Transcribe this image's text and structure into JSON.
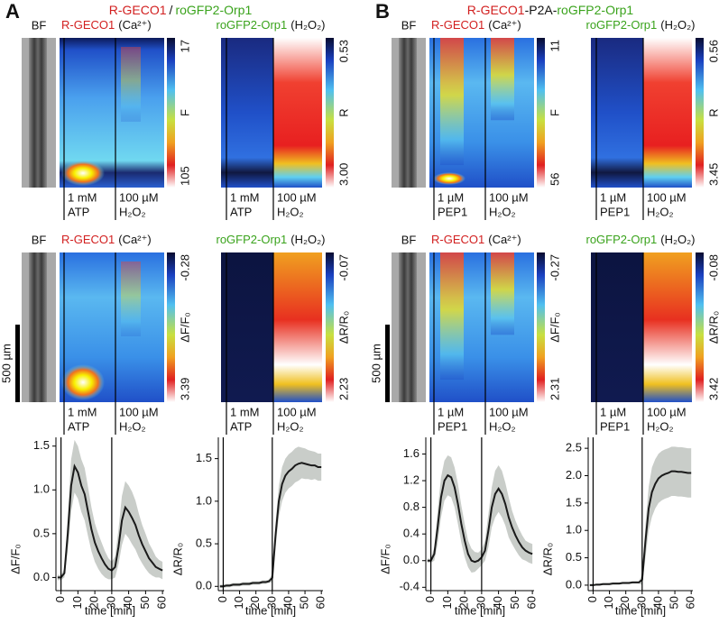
{
  "panels": [
    {
      "letter": "A",
      "title": [
        "R-GECO1",
        "/",
        "roGFP2-Orp1"
      ],
      "rows": [
        {
          "bf": "BF",
          "ca_sensor": "R-GECO1",
          "ca_label": "(Ca²⁺)",
          "ca_scale": [
            "17",
            "F",
            "105"
          ],
          "h2o2_sensor": "roGFP2-Orp1",
          "h2o2_label": "(H₂O₂)",
          "h2o2_scale": [
            "0.53",
            "R",
            "3.00"
          ]
        },
        {
          "bf": "BF",
          "ca_sensor": "R-GECO1",
          "ca_label": "(Ca²⁺)",
          "ca_scale": [
            "-0.28",
            "ΔF/F₀",
            "3.39"
          ],
          "h2o2_sensor": "roGFP2-Orp1",
          "h2o2_label": "(H₂O₂)",
          "h2o2_scale": [
            "-0.07",
            "ΔR/R₀",
            "2.23"
          ]
        }
      ],
      "treatments": [
        "1 mM",
        "ATP",
        "100 µM",
        "H₂O₂"
      ],
      "scale_bar": "500 µm"
    },
    {
      "letter": "B",
      "title": [
        "R-GECO1",
        "-P2A-",
        "roGFP2-Orp1"
      ],
      "rows": [
        {
          "bf": "BF",
          "ca_sensor": "R-GECO1",
          "ca_label": "(Ca²⁺)",
          "ca_scale": [
            "11",
            "F",
            "56"
          ],
          "h2o2_sensor": "roGFP2-Orp1",
          "h2o2_label": "(H₂O₂)",
          "h2o2_scale": [
            "0.56",
            "R",
            "3.45"
          ]
        },
        {
          "bf": "BF",
          "ca_sensor": "R-GECO1",
          "ca_label": "(Ca²⁺)",
          "ca_scale": [
            "-0.27",
            "ΔF/F₀",
            "2.31"
          ],
          "h2o2_sensor": "roGFP2-Orp1",
          "h2o2_label": "(H₂O₂)",
          "h2o2_scale": [
            "-0.08",
            "ΔR/R₀",
            "3.42"
          ]
        }
      ],
      "treatments": [
        "1 µM",
        "PEP1",
        "100 µM",
        "H₂O₂"
      ],
      "scale_bar": "500 µm"
    }
  ],
  "chart_data": [
    {
      "type": "line",
      "xlabel": "time [min]",
      "ylabel": "ΔF/F₀",
      "x": [
        -2,
        0,
        2,
        4,
        6,
        8,
        10,
        12,
        14,
        16,
        18,
        20,
        22,
        24,
        26,
        28,
        30,
        32,
        34,
        36,
        38,
        40,
        42,
        44,
        46,
        48,
        50,
        52,
        54,
        56,
        58,
        60
      ],
      "series": [
        {
          "color": "#1a1a1a",
          "band_color": "#c9cdc9",
          "values": [
            0.0,
            0.0,
            0.05,
            0.5,
            1.05,
            1.27,
            1.2,
            1.05,
            0.95,
            0.75,
            0.55,
            0.4,
            0.3,
            0.22,
            0.15,
            0.1,
            0.08,
            0.12,
            0.35,
            0.65,
            0.8,
            0.75,
            0.68,
            0.6,
            0.48,
            0.38,
            0.3,
            0.22,
            0.17,
            0.12,
            0.1,
            0.08
          ],
          "errors": [
            0.03,
            0.03,
            0.05,
            0.2,
            0.3,
            0.3,
            0.3,
            0.3,
            0.3,
            0.28,
            0.25,
            0.22,
            0.2,
            0.18,
            0.15,
            0.12,
            0.1,
            0.12,
            0.2,
            0.28,
            0.3,
            0.3,
            0.3,
            0.28,
            0.25,
            0.22,
            0.2,
            0.17,
            0.15,
            0.12,
            0.1,
            0.1
          ]
        }
      ],
      "vlines": [
        0,
        30
      ],
      "xlim": [
        -3,
        61
      ],
      "xticks": [
        0,
        10,
        20,
        30,
        40,
        50,
        60
      ],
      "ylim": [
        -0.15,
        1.6
      ],
      "yticks": [
        {
          "value": 0,
          "label": "0.0"
        },
        0.5,
        {
          "value": 1,
          "label": "1.0"
        },
        1.5
      ]
    },
    {
      "type": "line",
      "xlabel": "time [min]",
      "ylabel": "ΔR/R₀",
      "x": [
        -2,
        0,
        2,
        4,
        6,
        8,
        10,
        12,
        14,
        16,
        18,
        20,
        22,
        24,
        26,
        28,
        30,
        32,
        34,
        36,
        38,
        40,
        42,
        44,
        46,
        48,
        50,
        52,
        54,
        56,
        58,
        60
      ],
      "series": [
        {
          "color": "#1a1a1a",
          "band_color": "#c9cdc9",
          "values": [
            0,
            0,
            0.01,
            0.01,
            0.02,
            0.02,
            0.02,
            0.03,
            0.03,
            0.03,
            0.04,
            0.04,
            0.04,
            0.05,
            0.05,
            0.06,
            0.1,
            0.6,
            1.0,
            1.2,
            1.3,
            1.35,
            1.38,
            1.42,
            1.44,
            1.45,
            1.44,
            1.43,
            1.42,
            1.42,
            1.4,
            1.4
          ],
          "errors": [
            0.02,
            0.02,
            0.02,
            0.02,
            0.02,
            0.02,
            0.02,
            0.02,
            0.02,
            0.02,
            0.02,
            0.02,
            0.02,
            0.02,
            0.02,
            0.02,
            0.05,
            0.15,
            0.18,
            0.2,
            0.2,
            0.2,
            0.2,
            0.2,
            0.2,
            0.18,
            0.18,
            0.17,
            0.17,
            0.16,
            0.16,
            0.16
          ]
        }
      ],
      "vlines": [
        0,
        30
      ],
      "xlim": [
        -3,
        61
      ],
      "xticks": [
        0,
        10,
        20,
        30,
        40,
        50,
        60
      ],
      "ylim": [
        -0.05,
        1.75
      ],
      "yticks": [
        {
          "value": 0,
          "label": "0.0"
        },
        0.5,
        {
          "value": 1,
          "label": "1.0"
        },
        1.5
      ]
    },
    {
      "type": "line",
      "xlabel": "time [min]",
      "ylabel": "ΔF/F₀",
      "x": [
        -2,
        0,
        2,
        4,
        6,
        8,
        10,
        12,
        14,
        16,
        18,
        20,
        22,
        24,
        26,
        28,
        30,
        32,
        34,
        36,
        38,
        40,
        42,
        44,
        46,
        48,
        50,
        52,
        54,
        56,
        58,
        60
      ],
      "series": [
        {
          "color": "#1a1a1a",
          "band_color": "#c9cdc9",
          "values": [
            0,
            0,
            0.1,
            0.5,
            0.95,
            1.2,
            1.28,
            1.25,
            1.1,
            0.85,
            0.55,
            0.3,
            0.1,
            0.0,
            -0.02,
            0.0,
            0.05,
            0.15,
            0.45,
            0.8,
            1.0,
            1.08,
            1.0,
            0.85,
            0.65,
            0.5,
            0.38,
            0.28,
            0.2,
            0.15,
            0.12,
            0.1
          ],
          "errors": [
            0.03,
            0.03,
            0.1,
            0.25,
            0.3,
            0.3,
            0.3,
            0.3,
            0.3,
            0.3,
            0.28,
            0.25,
            0.2,
            0.18,
            0.15,
            0.12,
            0.12,
            0.15,
            0.25,
            0.3,
            0.35,
            0.35,
            0.35,
            0.32,
            0.3,
            0.25,
            0.22,
            0.2,
            0.18,
            0.15,
            0.15,
            0.15
          ]
        }
      ],
      "vlines": [
        0,
        30
      ],
      "xlim": [
        -3,
        61
      ],
      "xticks": [
        0,
        10,
        20,
        30,
        40,
        50,
        60
      ],
      "ylim": [
        -0.45,
        1.85
      ],
      "yticks": [
        -0.4,
        {
          "value": 0,
          "label": "0.0"
        },
        0.4,
        0.8,
        1.2,
        1.6
      ]
    },
    {
      "type": "line",
      "xlabel": "time [min]",
      "ylabel": "ΔR/R₀",
      "x": [
        -2,
        0,
        2,
        4,
        6,
        8,
        10,
        12,
        14,
        16,
        18,
        20,
        22,
        24,
        26,
        28,
        30,
        32,
        34,
        36,
        38,
        40,
        42,
        44,
        46,
        48,
        50,
        52,
        54,
        56,
        58,
        60
      ],
      "series": [
        {
          "color": "#1a1a1a",
          "band_color": "#c9cdc9",
          "values": [
            0,
            0,
            0.01,
            0.01,
            0.02,
            0.02,
            0.02,
            0.03,
            0.03,
            0.03,
            0.04,
            0.04,
            0.04,
            0.05,
            0.05,
            0.05,
            0.1,
            0.8,
            1.4,
            1.7,
            1.85,
            1.95,
            2.0,
            2.03,
            2.05,
            2.08,
            2.08,
            2.07,
            2.07,
            2.06,
            2.05,
            2.05
          ],
          "errors": [
            0.02,
            0.02,
            0.02,
            0.02,
            0.02,
            0.02,
            0.02,
            0.02,
            0.02,
            0.02,
            0.02,
            0.02,
            0.02,
            0.02,
            0.02,
            0.02,
            0.1,
            0.3,
            0.4,
            0.45,
            0.45,
            0.45,
            0.45,
            0.45,
            0.45,
            0.45,
            0.45,
            0.45,
            0.45,
            0.45,
            0.45,
            0.45
          ]
        }
      ],
      "vlines": [
        0,
        30
      ],
      "xlim": [
        -3,
        61
      ],
      "xticks": [
        0,
        10,
        20,
        30,
        40,
        50,
        60
      ],
      "ylim": [
        -0.1,
        2.7
      ],
      "yticks": [
        {
          "value": 0,
          "label": "0.0"
        },
        0.5,
        {
          "value": 1,
          "label": "1.0"
        },
        1.5,
        {
          "value": 2,
          "label": "2.0"
        },
        2.5
      ]
    }
  ]
}
